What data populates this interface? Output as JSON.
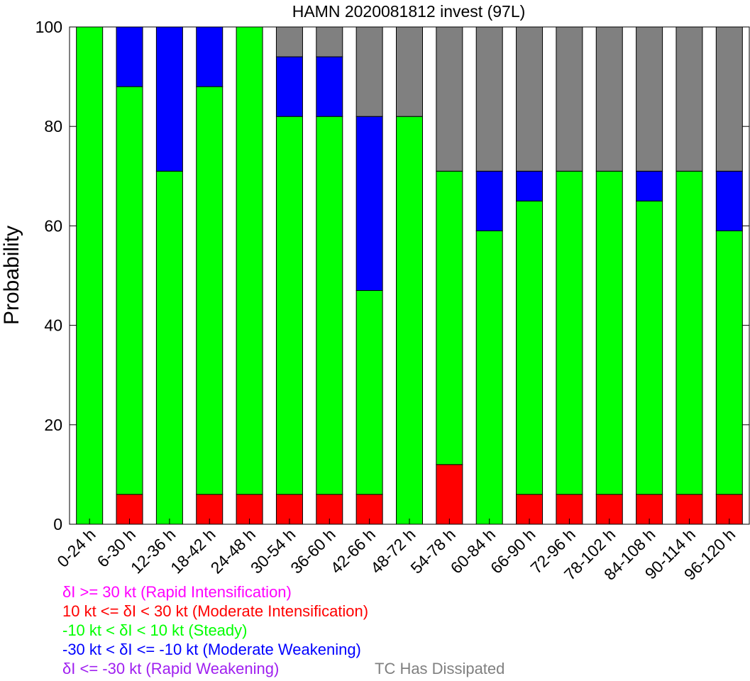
{
  "chart_data": {
    "type": "bar",
    "stacked": true,
    "title": "HAMN 2020081812 invest (97L)",
    "xlabel": "",
    "ylabel": "Probability",
    "ylim": [
      0,
      100
    ],
    "yticks": [
      0,
      20,
      40,
      60,
      80,
      100
    ],
    "grid": false,
    "categories": [
      "0-24 h",
      "6-30 h",
      "12-36 h",
      "18-42 h",
      "24-48 h",
      "30-54 h",
      "36-60 h",
      "42-66 h",
      "48-72 h",
      "54-78 h",
      "60-84 h",
      "66-90 h",
      "72-96 h",
      "78-102 h",
      "84-108 h",
      "90-114 h",
      "96-120 h"
    ],
    "series": [
      {
        "key": "ri",
        "color": "#ff00ff",
        "values": [
          0,
          0,
          0,
          0,
          0,
          0,
          0,
          0,
          0,
          0,
          0,
          0,
          0,
          0,
          0,
          0,
          0
        ]
      },
      {
        "key": "mi",
        "color": "#ff0000",
        "values": [
          0,
          6,
          0,
          6,
          6,
          6,
          6,
          6,
          0,
          12,
          0,
          6,
          6,
          6,
          6,
          6,
          6
        ]
      },
      {
        "key": "st",
        "color": "#00ff00",
        "values": [
          100,
          82,
          71,
          82,
          94,
          76,
          76,
          41,
          82,
          59,
          59,
          59,
          65,
          65,
          59,
          65,
          53
        ]
      },
      {
        "key": "mw",
        "color": "#0000ff",
        "values": [
          0,
          12,
          29,
          12,
          0,
          12,
          12,
          35,
          0,
          0,
          12,
          6,
          0,
          0,
          6,
          0,
          12
        ]
      },
      {
        "key": "rw",
        "color": "#a020f0",
        "values": [
          0,
          0,
          0,
          0,
          0,
          0,
          0,
          0,
          0,
          0,
          0,
          0,
          0,
          0,
          0,
          0,
          0
        ]
      },
      {
        "key": "dis",
        "color": "#808080",
        "values": [
          0,
          0,
          0,
          0,
          0,
          6,
          6,
          18,
          18,
          29,
          29,
          29,
          29,
          29,
          29,
          29,
          29
        ]
      }
    ]
  },
  "legend": {
    "ri": {
      "pre": "",
      "post": "I >= 30 kt (Rapid Intensification)",
      "color": "#ff00ff"
    },
    "mi": {
      "pre": "10 kt <= ",
      "post": "I < 30 kt (Moderate Intensification)",
      "color": "#ff0000"
    },
    "st": {
      "pre": "-10 kt < ",
      "post": "I < 10 kt (Steady)",
      "color": "#00ff00"
    },
    "mw": {
      "pre": "-30 kt < ",
      "post": "I <= -10 kt (Moderate Weakening)",
      "color": "#0000ff"
    },
    "rw": {
      "pre": "",
      "post": "I <= -30 kt (Rapid Weakening)",
      "color": "#a020f0"
    },
    "dis": {
      "text": "TC Has Dissipated",
      "color": "#808080"
    },
    "delta": "δ"
  }
}
